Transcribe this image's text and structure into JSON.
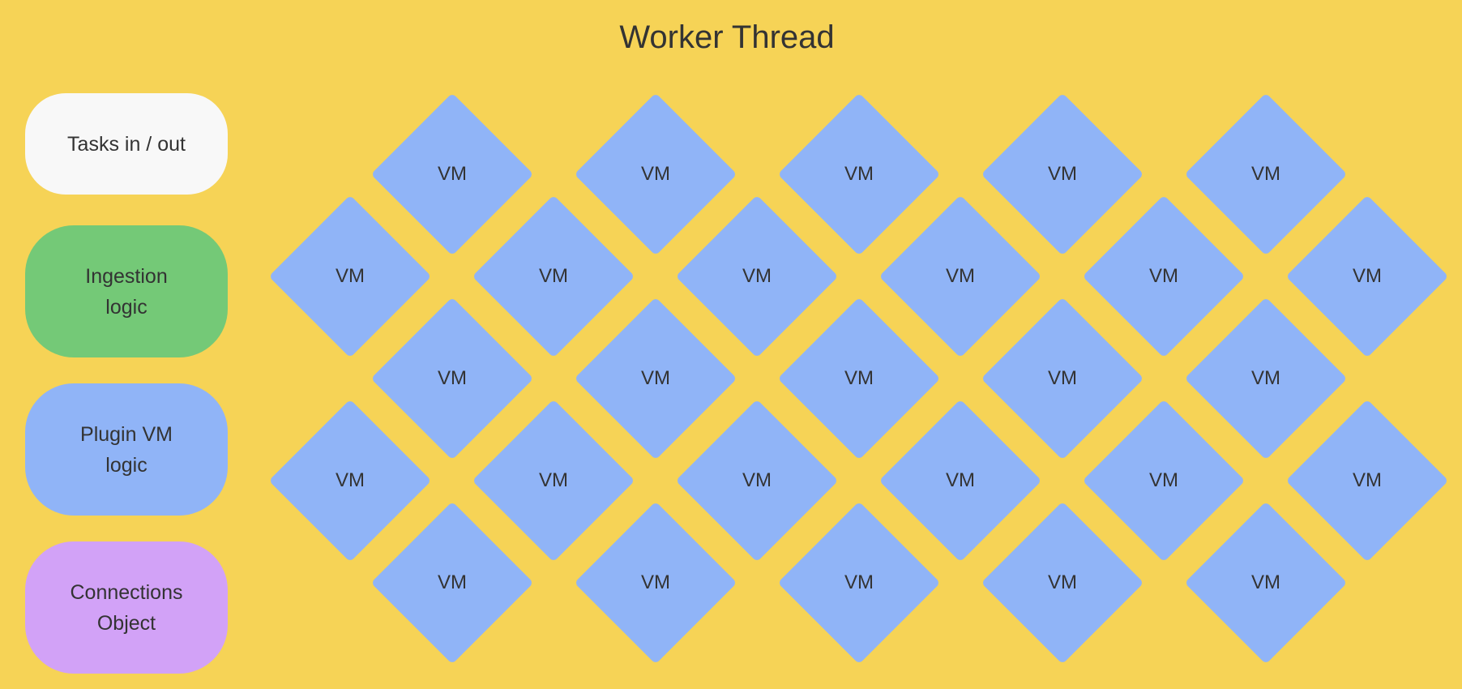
{
  "title": "Worker Thread",
  "legend": [
    {
      "name": "legend-tasks",
      "label": "Tasks in / out",
      "color": "#f8f8f8"
    },
    {
      "name": "legend-ingestion",
      "label": "Ingestion\nlogic",
      "color": "#74c977"
    },
    {
      "name": "legend-plugin-vm",
      "label": "Plugin VM\nlogic",
      "color": "#90b4f7"
    },
    {
      "name": "legend-connections",
      "label": "Connections\nObject",
      "color": "#d2a2f7"
    }
  ],
  "vm": {
    "label": "VM",
    "color": "#90b4f7",
    "rows": [
      5,
      6,
      5,
      6,
      5
    ]
  },
  "background": "#f6d356"
}
